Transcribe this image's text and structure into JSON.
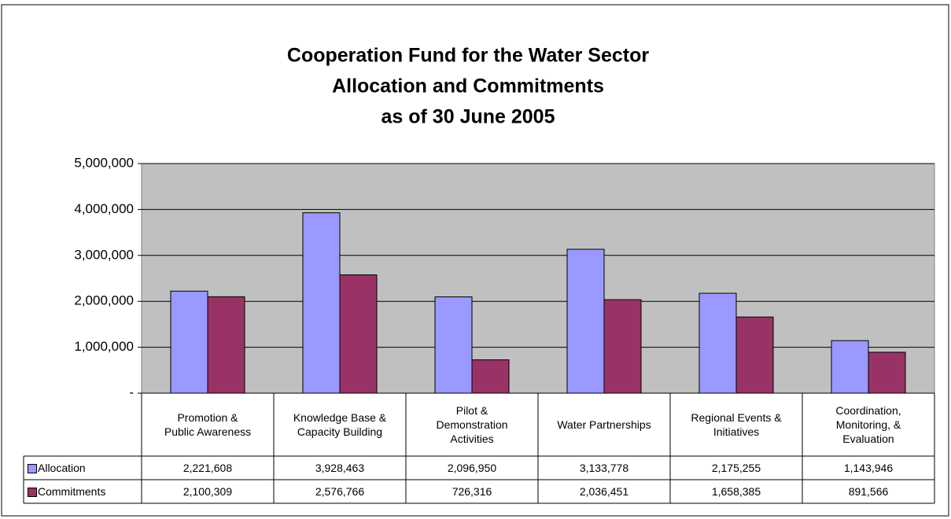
{
  "chart_data": {
    "type": "bar",
    "title": [
      "Cooperation Fund for the Water Sector",
      "Allocation and Commitments",
      "as of 30 June 2005"
    ],
    "categories": [
      "Promotion &\nPublic Awareness",
      "Knowledge Base &\nCapacity Building",
      "Pilot &\nDemonstration\nActivities",
      "Water Partnerships",
      "Regional Events &\nInitiatives",
      "Coordination,\nMonitoring, &\nEvaluation"
    ],
    "series": [
      {
        "name": "Allocation",
        "color": "#9999ff",
        "values": [
          2221608,
          3928463,
          2096950,
          3133778,
          2175255,
          1143946
        ],
        "value_labels": [
          "2,221,608",
          "3,928,463",
          "2,096,950",
          "3,133,778",
          "2,175,255",
          "1,143,946"
        ]
      },
      {
        "name": "Commitments",
        "color": "#993366",
        "values": [
          2100309,
          2576766,
          726316,
          2036451,
          1658385,
          891566
        ],
        "value_labels": [
          "2,100,309",
          "2,576,766",
          "726,316",
          "2,036,451",
          "1,658,385",
          "891,566"
        ]
      }
    ],
    "ylim": [
      0,
      5000000
    ],
    "yticks": [
      {
        "value": 0,
        "label": "-"
      },
      {
        "value": 1000000,
        "label": "1,000,000"
      },
      {
        "value": 2000000,
        "label": "2,000,000"
      },
      {
        "value": 3000000,
        "label": "3,000,000"
      },
      {
        "value": 4000000,
        "label": "4,000,000"
      },
      {
        "value": 5000000,
        "label": "5,000,000"
      }
    ],
    "grid": true,
    "plot_background": "#c0c0c0"
  }
}
